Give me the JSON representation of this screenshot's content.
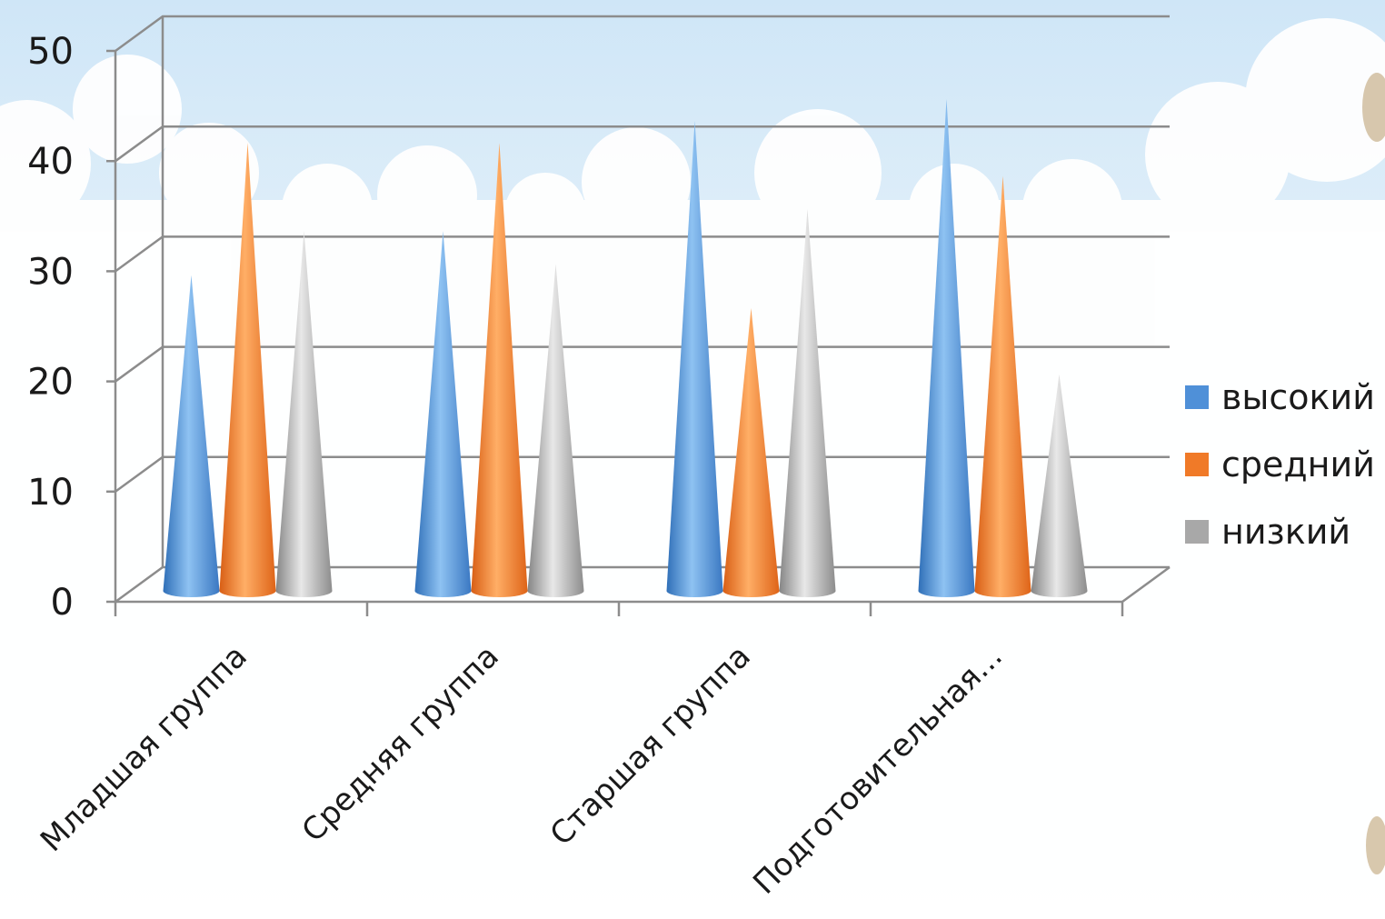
{
  "chart_data": {
    "type": "bar",
    "style": "3d-cone",
    "categories": [
      "Младшая группа",
      "Средняя группа",
      "Старшая группа",
      "Подготовительная..."
    ],
    "series": [
      {
        "name": "высокий",
        "values": [
          28,
          32,
          42,
          44
        ],
        "color": "#4f90d8"
      },
      {
        "name": "средний",
        "values": [
          40,
          40,
          25,
          37
        ],
        "color": "#f07a28"
      },
      {
        "name": "низкий",
        "values": [
          32,
          29,
          34,
          19
        ],
        "color": "#a8a8a8"
      }
    ],
    "ylim": [
      0,
      50
    ],
    "yticks": [
      0,
      10,
      20,
      30,
      40,
      50
    ],
    "grid": true,
    "legend": "right"
  }
}
